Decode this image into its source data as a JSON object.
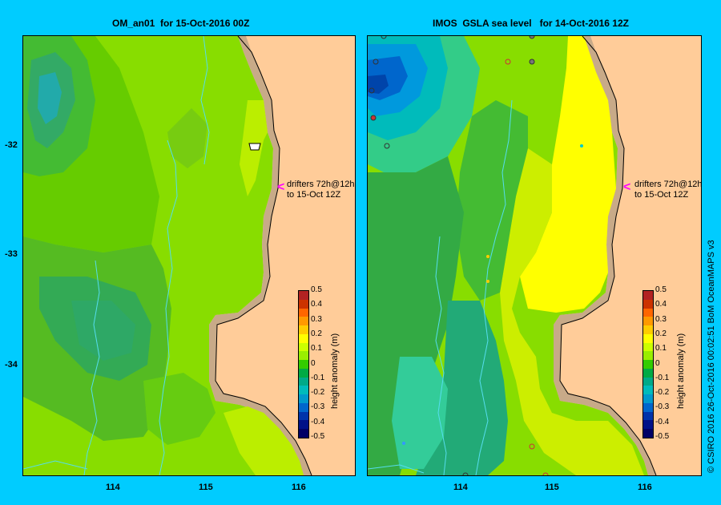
{
  "left_panel": {
    "title": "OM_an01  for 15-Oct-2016 00Z"
  },
  "right_panel": {
    "title": "IMOS  GSLA sea level   for 14-Oct-2016 12Z"
  },
  "lat_ticks": [
    "-32",
    "-33",
    "-34"
  ],
  "lon_ticks": [
    "114",
    "115",
    "116"
  ],
  "drifter_note": {
    "line1": "drifters 72h@12h",
    "line2": "to 15-Oct 12Z"
  },
  "colorbar": {
    "title": "height anomaly (m)",
    "ticks": [
      "0.5",
      "0.4",
      "0.3",
      "0.2",
      "0.1",
      "0",
      "-0.1",
      "-0.2",
      "-0.3",
      "-0.4",
      "-0.5"
    ],
    "colors": [
      "#b22222",
      "#cc3300",
      "#ff6600",
      "#ff9900",
      "#ffcc00",
      "#ffff00",
      "#ccff00",
      "#99ee00",
      "#33cc00",
      "#00aa44",
      "#00aa88",
      "#00bbbb",
      "#0099cc",
      "#0066cc",
      "#0033aa",
      "#001188",
      "#000066"
    ]
  },
  "credit": "© CSIRO 2016   26-Oct-2016 00:02:51 BoM OceanMAPS v3",
  "colors": {
    "land": "#ffcc99",
    "shelf": "#c8aa88",
    "background": "#00ccff",
    "arrow": "#ff00ff",
    "drifter_track": "#55ddee"
  }
}
